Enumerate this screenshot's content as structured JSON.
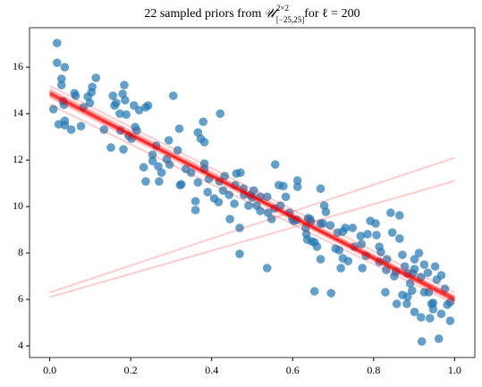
{
  "chart_data": {
    "type": "scatter",
    "title_parts": {
      "prefix": "22 sampled priors from ",
      "symbol": "𝒰",
      "sup": "2×2",
      "sub": "[−25,25]",
      "suffix": " for ℓ = 200"
    },
    "xlim": [
      -0.05,
      1.05
    ],
    "ylim": [
      3.5,
      17.7
    ],
    "xticks": [
      {
        "value": 0,
        "label": "0.0"
      },
      {
        "value": 0.2,
        "label": "0.2"
      },
      {
        "value": 0.4,
        "label": "0.4"
      },
      {
        "value": 0.6,
        "label": "0.6"
      },
      {
        "value": 0.8,
        "label": "0.8"
      },
      {
        "value": 1,
        "label": "1.0"
      }
    ],
    "yticks": [
      4,
      6,
      8,
      10,
      12,
      14,
      16
    ],
    "point_color": "#1f77b4",
    "line_color": "#ff0000",
    "x": [
      0.018,
      0.018,
      0.037,
      0.029,
      0.029,
      0.009,
      0.033,
      0.035,
      0.022,
      0.037,
      0.037,
      0.053,
      0.061,
      0.064,
      0.077,
      0.083,
      0.094,
      0.103,
      0.105,
      0.114,
      0.099,
      0.134,
      0.151,
      0.156,
      0.16,
      0.164,
      0.173,
      0.175,
      0.184,
      0.18,
      0.186,
      0.182,
      0.189,
      0.195,
      0.202,
      0.208,
      0.211,
      0.215,
      0.221,
      0.237,
      0.243,
      0.254,
      0.254,
      0.263,
      0.232,
      0.237,
      0.27,
      0.268,
      0.276,
      0.289,
      0.294,
      0.296,
      0.305,
      0.316,
      0.32,
      0.322,
      0.325,
      0.336,
      0.349,
      0.36,
      0.36,
      0.366,
      0.379,
      0.366,
      0.382,
      0.382,
      0.382,
      0.39,
      0.406,
      0.417,
      0.419,
      0.421,
      0.393,
      0.428,
      0.432,
      0.443,
      0.445,
      0.456,
      0.461,
      0.458,
      0.471,
      0.478,
      0.48,
      0.491,
      0.496,
      0.5,
      0.504,
      0.511,
      0.52,
      0.52,
      0.537,
      0.539,
      0.555,
      0.557,
      0.566,
      0.577,
      0.583,
      0.592,
      0.599,
      0.603,
      0.61,
      0.612,
      0.612,
      0.632,
      0.634,
      0.638,
      0.643,
      0.645,
      0.654,
      0.66,
      0.669,
      0.669,
      0.678,
      0.669,
      0.682,
      0.693,
      0.706,
      0.715,
      0.711,
      0.724,
      0.724,
      0.73,
      0.748,
      0.737,
      0.752,
      0.768,
      0.77,
      0.781,
      0.785,
      0.792,
      0.805,
      0.807,
      0.814,
      0.814,
      0.818,
      0.831,
      0.833,
      0.846,
      0.851,
      0.855,
      0.864,
      0.864,
      0.871,
      0.877,
      0.884,
      0.89,
      0.897,
      0.917,
      0.925,
      0.925,
      0.934,
      0.952,
      0.956,
      0.967,
      0.976,
      0.989,
      0.936,
      0.943,
      0.967,
      0.982,
      0.989,
      0.939,
      0.947,
      0.901,
      0.912,
      0.901,
      0.871,
      0.857,
      0.829,
      0.895,
      0.901,
      0.882,
      0.884,
      0.919,
      0.947,
      0.961,
      0.772,
      0.675,
      0.57,
      0.548,
      0.469,
      0.537,
      0.373,
      0.636,
      0.695,
      0.719,
      0.647,
      0.842,
      0.917,
      0.469,
      0.654
    ],
    "y": [
      17.04,
      16.19,
      16.0,
      15.5,
      15.23,
      14.19,
      14.54,
      14.38,
      13.54,
      13.69,
      13.5,
      13.31,
      14.88,
      14.77,
      13.46,
      14.27,
      14.73,
      14.92,
      15.15,
      15.54,
      14.46,
      13.31,
      12.54,
      14.77,
      14.35,
      14.46,
      14.0,
      13.27,
      15.23,
      14.85,
      14.58,
      12.46,
      13.96,
      13.04,
      12.92,
      14.35,
      13.42,
      13.27,
      14.15,
      14.27,
      14.35,
      11.96,
      12.23,
      12.62,
      11.69,
      11.08,
      11.08,
      11.73,
      11.46,
      12.04,
      12.85,
      11.81,
      14.77,
      12.42,
      13.35,
      10.92,
      10.96,
      11.62,
      11.46,
      10.23,
      9.85,
      11.04,
      13.65,
      13.19,
      12.77,
      11.62,
      11.85,
      10.62,
      10.35,
      10.19,
      11.08,
      14.0,
      11.19,
      10.69,
      11.31,
      10.5,
      9.46,
      10.12,
      11.42,
      10.92,
      11.46,
      10.77,
      10.5,
      10.04,
      10.5,
      10.38,
      10.69,
      10.04,
      10.42,
      9.81,
      10.42,
      9.73,
      9.92,
      11.81,
      10.92,
      10.88,
      10.42,
      9.73,
      9.46,
      9.38,
      9.42,
      11.12,
      10.85,
      9.08,
      8.81,
      9.5,
      9.46,
      9.35,
      8.46,
      8.27,
      9.27,
      10.77,
      10.04,
      7.73,
      9.77,
      9.19,
      8.19,
      8.12,
      8.88,
      8.92,
      7.77,
      9.08,
      9.08,
      7.65,
      8.27,
      8.73,
      8.38,
      7.88,
      8.81,
      9.38,
      9.27,
      8.77,
      7.62,
      8.27,
      8.04,
      7.27,
      7.73,
      8.88,
      7.0,
      7.19,
      8.62,
      9.62,
      7.92,
      7.42,
      7.12,
      6.69,
      7.12,
      6.96,
      7.5,
      6.31,
      7.15,
      7.42,
      6.85,
      7.04,
      6.46,
      5.88,
      6.31,
      5.81,
      5.38,
      5.77,
      5.08,
      5.19,
      5.58,
      7.73,
      8.0,
      7.31,
      6.19,
      5.81,
      6.31,
      6.38,
      5.46,
      5.81,
      6.12,
      4.19,
      5.85,
      4.31,
      7.35,
      9.27,
      10.04,
      9.46,
      9.08,
      7.35,
      12.92,
      8.58,
      6.27,
      7.35,
      8.5,
      9.73,
      5.23,
      7.96,
      6.35
    ],
    "line_x": [
      0,
      1
    ],
    "lines": [
      [
        15.2,
        6.3
      ],
      [
        14.4,
        5.8
      ],
      [
        6.3,
        12.1
      ],
      [
        6.1,
        11.1
      ],
      [
        14.9,
        6.0
      ],
      [
        14.85,
        6.0
      ],
      [
        14.8,
        5.95
      ],
      [
        14.95,
        6.05
      ],
      [
        14.9,
        6.1
      ],
      [
        14.8,
        6.0
      ],
      [
        14.85,
        5.9
      ],
      [
        14.9,
        5.95
      ],
      [
        14.75,
        6.0
      ],
      [
        15.0,
        6.1
      ],
      [
        14.85,
        6.05
      ],
      [
        14.9,
        6.0
      ],
      [
        14.8,
        6.1
      ],
      [
        14.95,
        5.95
      ],
      [
        14.7,
        5.9
      ],
      [
        15.05,
        6.15
      ],
      [
        14.85,
        6.0
      ],
      [
        14.9,
        6.05
      ]
    ]
  }
}
